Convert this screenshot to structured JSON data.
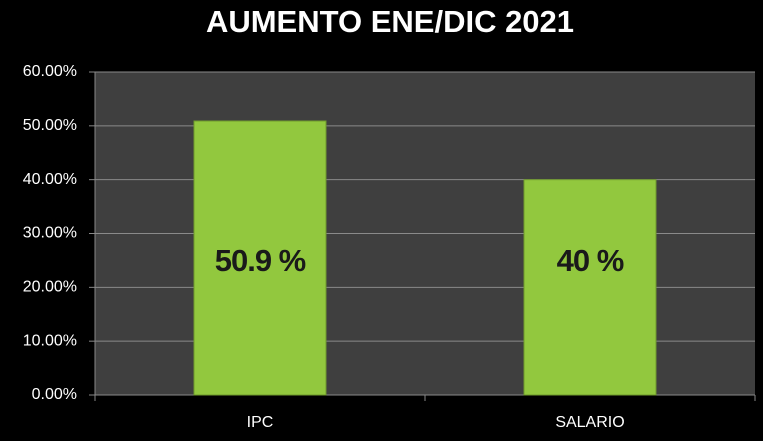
{
  "chart_data": {
    "type": "bar",
    "title": "AUMENTO ENE/DIC 2021",
    "categories": [
      "IPC",
      "SALARIO"
    ],
    "values": [
      50.9,
      40
    ],
    "value_labels": [
      "50.9 %",
      "40 %"
    ],
    "color": "#92c83e",
    "ylim": [
      0,
      60
    ],
    "yticks": [
      {
        "value": 0,
        "label": "0.00%"
      },
      {
        "value": 10,
        "label": "10.00%"
      },
      {
        "value": 20,
        "label": "20.00%"
      },
      {
        "value": 30,
        "label": "30.00%"
      },
      {
        "value": 40,
        "label": "40.00%"
      },
      {
        "value": 50,
        "label": "50.00%"
      },
      {
        "value": 60,
        "label": "60.00%"
      }
    ],
    "grid": true
  }
}
